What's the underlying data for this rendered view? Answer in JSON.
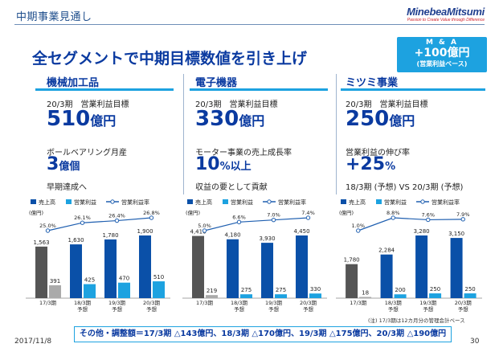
{
  "header": {
    "title": "中期事業見通し",
    "logo_main": "MinebeaMitsumi",
    "logo_tag": "Passion to Create Value through Difference"
  },
  "main_title": "全セグメントで中期目標数値を引き上げ",
  "ma_box": {
    "line1": "M & A",
    "line2": "+100億円",
    "line3": "(営業利益ベース)"
  },
  "segments": [
    {
      "title": "機械加工品",
      "label1": "20/3期　営業利益目標",
      "value1": "510",
      "unit1": "億円",
      "label2": "ボールベアリング月産",
      "value2": "3",
      "unit2": "億個",
      "label3": "早期達成へ"
    },
    {
      "title": "電子機器",
      "label1": "20/3期　営業利益目標",
      "value1": "330",
      "unit1": "億円",
      "label2": "モーター事業の売上成長率",
      "value2": "10",
      "unit2": "%以上",
      "label3": "収益の要として貢献"
    },
    {
      "title": "ミツミ事業",
      "label1": "20/3期　営業利益目標",
      "value1": "250",
      "unit1": "億円",
      "label2": "営業利益の伸び率",
      "value2": "+25",
      "unit2": "%",
      "label3": "18/3期 (予想) VS 20/3期 (予想)"
    }
  ],
  "colors": {
    "sales": "#0a50a8",
    "sales_first": "#555555",
    "profit": "#1da2e0",
    "profit_first": "#aaaaaa",
    "margin": "#1f5fb0",
    "accent": "#0a3aa0"
  },
  "chart_data": [
    {
      "type": "bar",
      "legend": [
        "売上高",
        "営業利益",
        "営業利益率"
      ],
      "unit_label": "(億円)",
      "categories": [
        "17/3期",
        "18/3期\n予想",
        "19/3期\n予想",
        "20/3期\n予想"
      ],
      "series": [
        {
          "name": "売上高",
          "values": [
            1563,
            1630,
            1780,
            1900
          ],
          "labels": [
            "1,563",
            "1,630",
            "1,780",
            "1,900"
          ]
        },
        {
          "name": "営業利益",
          "values": [
            391,
            425,
            470,
            510
          ],
          "labels": [
            "391",
            "425",
            "470",
            "510"
          ]
        },
        {
          "name": "営業利益率",
          "values": [
            25.0,
            26.1,
            26.4,
            26.8
          ],
          "labels": [
            "25.0%",
            "26.1%",
            "26.4%",
            "26.8%"
          ]
        }
      ]
    },
    {
      "type": "bar",
      "legend": [
        "売上高",
        "営業利益",
        "営業利益率"
      ],
      "unit_label": "(億円)",
      "categories": [
        "17/3期",
        "18/3期\n予想",
        "19/3期\n予想",
        "20/3期\n予想"
      ],
      "series": [
        {
          "name": "売上高",
          "values": [
            4416,
            4180,
            3930,
            4450
          ],
          "labels": [
            "4,416",
            "4,180",
            "3,930",
            "4,450"
          ]
        },
        {
          "name": "営業利益",
          "values": [
            219,
            275,
            275,
            330
          ],
          "labels": [
            "219",
            "275",
            "275",
            "330"
          ]
        },
        {
          "name": "営業利益率",
          "values": [
            5.0,
            6.6,
            7.0,
            7.4
          ],
          "labels": [
            "5.0%",
            "6.6%",
            "7.0%",
            "7.4%"
          ]
        }
      ]
    },
    {
      "type": "bar",
      "legend": [
        "売上高",
        "営業利益",
        "営業利益率"
      ],
      "unit_label": "(億円)",
      "categories": [
        "17/3期",
        "18/3期\n予想",
        "19/3期\n予想",
        "20/3期\n予想"
      ],
      "series": [
        {
          "name": "売上高",
          "values": [
            1780,
            2284,
            3280,
            3150
          ],
          "labels": [
            "1,780",
            "2,284",
            "3,280",
            "3,150"
          ]
        },
        {
          "name": "営業利益",
          "values": [
            18,
            200,
            250,
            250
          ],
          "labels": [
            "18",
            "200",
            "250",
            "250"
          ]
        },
        {
          "name": "営業利益率",
          "values": [
            1.0,
            8.8,
            7.6,
            7.9
          ],
          "labels": [
            "1.0%",
            "8.8%",
            "7.6%",
            "7.9%"
          ]
        }
      ]
    }
  ],
  "footnote": "(注) 17/3期は12カ月分の管理会計ベース",
  "bottom_note": "その他・調整額＝17/3期 △143億円、18/3期 △170億円、19/3期 △175億円、20/3期 △190億円",
  "date": "2017/11/8",
  "page_number": "30"
}
